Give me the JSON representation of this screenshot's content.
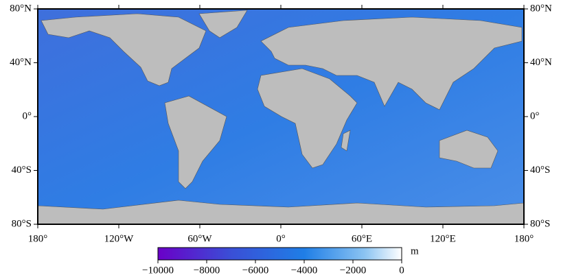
{
  "map": {
    "xlim": [
      -180,
      180
    ],
    "ylim": [
      -80,
      80
    ],
    "xticks": [
      {
        "value": -180,
        "label": "180°"
      },
      {
        "value": -120,
        "label": "120°W"
      },
      {
        "value": -60,
        "label": "60°W"
      },
      {
        "value": 0,
        "label": "0°"
      },
      {
        "value": 60,
        "label": "60°E"
      },
      {
        "value": 120,
        "label": "120°E"
      },
      {
        "value": 180,
        "label": "180°"
      }
    ],
    "yticks": [
      {
        "value": -80,
        "label": "80°S"
      },
      {
        "value": -40,
        "label": "40°S"
      },
      {
        "value": 0,
        "label": "0°"
      },
      {
        "value": 40,
        "label": "40°N"
      },
      {
        "value": 80,
        "label": "80°N"
      }
    ],
    "colorbar": {
      "lim": [
        -10000,
        0
      ],
      "ticks": [
        {
          "value": -10000,
          "label": "−10000"
        },
        {
          "value": -8000,
          "label": "−8000"
        },
        {
          "value": -6000,
          "label": "−6000"
        },
        {
          "value": -4000,
          "label": "−4000"
        },
        {
          "value": -2000,
          "label": "−2000"
        },
        0
      ],
      "unit": "m"
    }
  }
}
